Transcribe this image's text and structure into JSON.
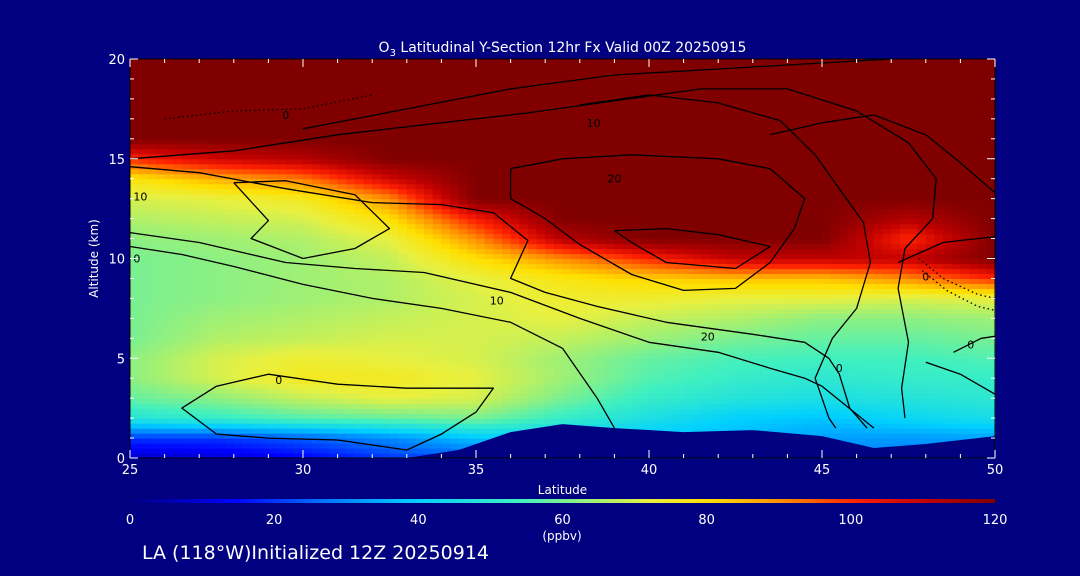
{
  "chart_data": {
    "type": "heatmap",
    "title": "O3 Latitudinal Y-Section 12hr  Fx Valid 00Z 20250915",
    "title_parts": {
      "pre": "O",
      "sub": "3",
      "post": " Latitudinal Y-Section 12hr  Fx Valid 00Z 20250915"
    },
    "xlabel": "Latitude",
    "ylabel": "Altitude (km)",
    "xlim": [
      25,
      50
    ],
    "ylim": [
      0,
      20
    ],
    "x_ticks": [
      25,
      30,
      35,
      40,
      45,
      50
    ],
    "y_ticks": [
      0,
      5,
      10,
      15,
      20
    ],
    "colorbar": {
      "ticks": [
        0,
        20,
        40,
        60,
        80,
        100,
        120
      ],
      "unit": "(ppbv)",
      "range": [
        0,
        120
      ]
    },
    "x_grid": [
      25,
      27.5,
      30,
      32.5,
      35,
      37.5,
      40,
      42.5,
      45,
      47.5,
      50
    ],
    "y_grid": [
      0,
      1,
      2,
      3,
      4,
      5,
      6,
      7,
      8,
      9,
      10,
      11,
      12,
      13,
      14,
      15,
      16,
      17,
      18,
      19,
      20
    ],
    "ozone_ppbv": [
      [
        8,
        10,
        14,
        20,
        22,
        25,
        28,
        28,
        28,
        28,
        30
      ],
      [
        20,
        20,
        24,
        30,
        38,
        40,
        38,
        36,
        33,
        32,
        33
      ],
      [
        48,
        52,
        56,
        58,
        60,
        52,
        46,
        40,
        38,
        42,
        45
      ],
      [
        58,
        62,
        68,
        72,
        70,
        60,
        52,
        48,
        46,
        48,
        50
      ],
      [
        62,
        70,
        76,
        76,
        72,
        64,
        56,
        52,
        50,
        52,
        52
      ],
      [
        62,
        70,
        74,
        72,
        70,
        64,
        58,
        55,
        54,
        54,
        56
      ],
      [
        60,
        66,
        68,
        70,
        70,
        68,
        64,
        60,
        58,
        58,
        60
      ],
      [
        60,
        64,
        66,
        68,
        70,
        72,
        68,
        66,
        62,
        62,
        64
      ],
      [
        60,
        62,
        64,
        66,
        70,
        74,
        74,
        72,
        72,
        70,
        72
      ],
      [
        60,
        62,
        64,
        66,
        72,
        78,
        82,
        84,
        84,
        90,
        100
      ],
      [
        60,
        62,
        64,
        68,
        80,
        90,
        100,
        110,
        110,
        110,
        120
      ],
      [
        62,
        64,
        66,
        72,
        90,
        112,
        120,
        120,
        120,
        100,
        120
      ],
      [
        66,
        68,
        70,
        80,
        102,
        120,
        120,
        120,
        120,
        112,
        120
      ],
      [
        70,
        72,
        76,
        90,
        120,
        120,
        120,
        120,
        120,
        120,
        120
      ],
      [
        78,
        86,
        92,
        108,
        120,
        120,
        120,
        120,
        120,
        120,
        120
      ],
      [
        100,
        108,
        112,
        120,
        120,
        120,
        120,
        120,
        120,
        120,
        120
      ],
      [
        120,
        120,
        120,
        120,
        120,
        120,
        120,
        120,
        120,
        120,
        120
      ],
      [
        120,
        120,
        120,
        120,
        120,
        120,
        120,
        120,
        120,
        120,
        120
      ],
      [
        120,
        120,
        120,
        120,
        120,
        120,
        120,
        120,
        120,
        120,
        120
      ],
      [
        120,
        120,
        120,
        120,
        120,
        120,
        120,
        120,
        120,
        120,
        120
      ],
      [
        120,
        120,
        120,
        120,
        120,
        120,
        120,
        120,
        120,
        120,
        120
      ]
    ],
    "terrain_km": [
      [
        25,
        0
      ],
      [
        31,
        0
      ],
      [
        33,
        0
      ],
      [
        34.5,
        0.4
      ],
      [
        36,
        1.3
      ],
      [
        37.5,
        1.7
      ],
      [
        39,
        1.5
      ],
      [
        41,
        1.3
      ],
      [
        43,
        1.4
      ],
      [
        45,
        1.1
      ],
      [
        46.5,
        0.5
      ],
      [
        48,
        0.7
      ],
      [
        50,
        1.1
      ],
      [
        50,
        0
      ],
      [
        25,
        0
      ]
    ],
    "contour_labels": [
      {
        "text": "0",
        "lat": 29.3,
        "alt": 3.9
      },
      {
        "text": "0",
        "lat": 49.3,
        "alt": 5.7
      },
      {
        "text": "0",
        "lat": 45.5,
        "alt": 4.5
      },
      {
        "text": "10",
        "lat": 25.3,
        "alt": 13.1
      },
      {
        "text": "0",
        "lat": 25.2,
        "alt": 10.0
      },
      {
        "text": "10",
        "lat": 35.6,
        "alt": 7.9
      },
      {
        "text": "20",
        "lat": 41.7,
        "alt": 6.1
      },
      {
        "text": "20",
        "lat": 39.0,
        "alt": 14.0
      },
      {
        "text": "10",
        "lat": 38.4,
        "alt": 16.8
      },
      {
        "text": "0",
        "lat": 29.5,
        "alt": 17.2
      },
      {
        "text": "0",
        "lat": 48.0,
        "alt": 9.1
      }
    ],
    "contour_lines": [
      {
        "style": "solid",
        "pts": [
          [
            27.5,
            1.2
          ],
          [
            26.5,
            2.5
          ],
          [
            27.5,
            3.6
          ],
          [
            29,
            4.2
          ],
          [
            31,
            3.7
          ],
          [
            33,
            3.5
          ],
          [
            35.5,
            3.5
          ],
          [
            35,
            2.3
          ],
          [
            34,
            1.2
          ],
          [
            33,
            0.4
          ],
          [
            31,
            0.9
          ],
          [
            29,
            1.0
          ],
          [
            27.5,
            1.2
          ]
        ]
      },
      {
        "style": "solid",
        "pts": [
          [
            25,
            10.6
          ],
          [
            26.5,
            10.2
          ],
          [
            28,
            9.6
          ],
          [
            30,
            8.7
          ],
          [
            32,
            8.0
          ],
          [
            34,
            7.5
          ],
          [
            36,
            6.8
          ],
          [
            37.5,
            5.5
          ],
          [
            38.5,
            3.0
          ],
          [
            39,
            1.5
          ]
        ]
      },
      {
        "style": "solid",
        "pts": [
          [
            25,
            11.3
          ],
          [
            27,
            10.8
          ],
          [
            29.5,
            9.8
          ],
          [
            31.5,
            9.5
          ],
          [
            33.5,
            9.3
          ],
          [
            36,
            8.3
          ],
          [
            38,
            7.0
          ],
          [
            40,
            5.8
          ],
          [
            42,
            5.3
          ],
          [
            43.5,
            4.5
          ],
          [
            44.5,
            4.0
          ],
          [
            45,
            3.6
          ],
          [
            46.5,
            1.5
          ]
        ]
      },
      {
        "style": "solid",
        "pts": [
          [
            25,
            14.6
          ],
          [
            27,
            14.3
          ],
          [
            29.5,
            13.5
          ],
          [
            32,
            12.8
          ],
          [
            34,
            12.7
          ],
          [
            35.5,
            12.3
          ],
          [
            36.5,
            10.9
          ],
          [
            36,
            9.0
          ],
          [
            37,
            8.3
          ],
          [
            38.5,
            7.6
          ],
          [
            40.5,
            6.8
          ],
          [
            43,
            6.2
          ],
          [
            44.5,
            5.8
          ],
          [
            45.2,
            5.0
          ],
          [
            45.5,
            4.2
          ],
          [
            45.8,
            2.5
          ],
          [
            46.3,
            1.5
          ]
        ]
      },
      {
        "style": "solid",
        "pts": [
          [
            28,
            13.8
          ],
          [
            29.5,
            13.9
          ],
          [
            31.5,
            13.2
          ],
          [
            32.5,
            11.5
          ],
          [
            31.5,
            10.5
          ],
          [
            30,
            10.0
          ],
          [
            28.5,
            11.0
          ],
          [
            29,
            11.9
          ],
          [
            28,
            13.8
          ]
        ]
      },
      {
        "style": "solid",
        "pts": [
          [
            39,
            11.4
          ],
          [
            40.5,
            11.5
          ],
          [
            42,
            11.2
          ],
          [
            43.5,
            10.6
          ],
          [
            42.5,
            9.5
          ],
          [
            40.5,
            9.8
          ],
          [
            39.5,
            10.8
          ],
          [
            39,
            11.4
          ]
        ]
      },
      {
        "style": "solid",
        "pts": [
          [
            36,
            14.5
          ],
          [
            37.5,
            15.0
          ],
          [
            39.5,
            15.2
          ],
          [
            42,
            15.0
          ],
          [
            43.5,
            14.5
          ],
          [
            44.5,
            13.0
          ],
          [
            44.2,
            11.5
          ],
          [
            43.5,
            9.8
          ],
          [
            42.5,
            8.5
          ],
          [
            41,
            8.4
          ],
          [
            39.5,
            9.2
          ],
          [
            38,
            10.7
          ],
          [
            37,
            12.0
          ],
          [
            36,
            13.0
          ],
          [
            36,
            14.5
          ]
        ]
      },
      {
        "style": "solid",
        "pts": [
          [
            38,
            17.7
          ],
          [
            40,
            18.2
          ],
          [
            42,
            17.8
          ],
          [
            43.8,
            16.9
          ],
          [
            44.8,
            15.2
          ],
          [
            45.5,
            13.5
          ],
          [
            46.2,
            11.8
          ],
          [
            46.4,
            9.8
          ],
          [
            46,
            7.5
          ],
          [
            45.3,
            6.0
          ],
          [
            44.8,
            4.0
          ],
          [
            45.2,
            2.0
          ],
          [
            45.4,
            1.5
          ]
        ]
      },
      {
        "style": "solid",
        "pts": [
          [
            30,
            16.5
          ],
          [
            33,
            17.5
          ],
          [
            36,
            18.5
          ],
          [
            39,
            19.2
          ],
          [
            42,
            19.5
          ],
          [
            45,
            19.8
          ],
          [
            47,
            20
          ]
        ]
      },
      {
        "style": "solid",
        "pts": [
          [
            25,
            15.0
          ],
          [
            28,
            15.4
          ],
          [
            31,
            16.2
          ],
          [
            34,
            16.8
          ],
          [
            36.5,
            17.3
          ],
          [
            39,
            17.9
          ],
          [
            41.5,
            18.5
          ],
          [
            44,
            18.5
          ],
          [
            46,
            17.4
          ],
          [
            47.5,
            15.8
          ],
          [
            48.3,
            14.0
          ],
          [
            48.2,
            12.0
          ],
          [
            47.4,
            10.5
          ],
          [
            47.2,
            8.5
          ],
          [
            47.5,
            5.8
          ],
          [
            47.3,
            3.5
          ],
          [
            47.4,
            2.0
          ]
        ]
      },
      {
        "style": "solid",
        "pts": [
          [
            43.5,
            16.2
          ],
          [
            45,
            16.8
          ],
          [
            46.5,
            17.2
          ],
          [
            48,
            16.2
          ],
          [
            49,
            14.8
          ],
          [
            50,
            13.3
          ]
        ]
      },
      {
        "style": "solid",
        "pts": [
          [
            47.2,
            9.8
          ],
          [
            48.5,
            10.8
          ],
          [
            50,
            11.1
          ]
        ]
      },
      {
        "style": "solid",
        "pts": [
          [
            48.8,
            5.3
          ],
          [
            49.6,
            6.0
          ],
          [
            50,
            6.1
          ]
        ]
      },
      {
        "style": "solid",
        "pts": [
          [
            48,
            4.8
          ],
          [
            49,
            4.2
          ],
          [
            50,
            3.2
          ]
        ]
      },
      {
        "style": "dotted",
        "pts": [
          [
            26,
            17.0
          ],
          [
            28,
            17.4
          ],
          [
            30,
            17.5
          ],
          [
            32,
            18.2
          ]
        ]
      },
      {
        "style": "dotted",
        "pts": [
          [
            47.8,
            10.0
          ],
          [
            48.5,
            9.0
          ],
          [
            49.5,
            8.2
          ],
          [
            50,
            8.0
          ]
        ]
      },
      {
        "style": "dotted",
        "pts": [
          [
            47.9,
            9.4
          ],
          [
            48.6,
            8.4
          ],
          [
            49.5,
            7.6
          ],
          [
            50,
            7.4
          ]
        ]
      }
    ]
  },
  "footer": "LA (118°W)Initialized 12Z 20250914"
}
